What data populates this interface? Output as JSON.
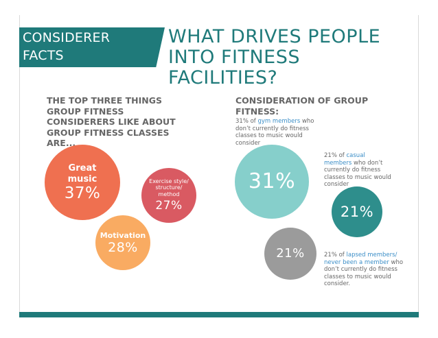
{
  "header": {
    "badge_line1": "CONSIDERER",
    "badge_line2": "FACTS",
    "title_line1": "WHAT DRIVES PEOPLE",
    "title_line2": "INTO FITNESS",
    "title_line3": "FACILITIES?"
  },
  "left": {
    "heading_lines": [
      "THE TOP THREE THINGS",
      "GROUP FITNESS",
      "CONSIDERERS LIKE ABOUT",
      "GROUP FITNESS CLASSES",
      "ARE..."
    ],
    "items": [
      {
        "label_lines": [
          "Great",
          "music"
        ],
        "percent": "37%",
        "color": "#ef7050"
      },
      {
        "label_lines": [
          "Exercise style/",
          "structure/",
          "method"
        ],
        "percent": "27%",
        "color": "#d95a62"
      },
      {
        "label_lines": [
          "Motivation"
        ],
        "percent": "28%",
        "color": "#f9ab62"
      }
    ]
  },
  "right": {
    "heading_lines": [
      "CONSIDERATION OF GROUP",
      "FITNESS:"
    ],
    "note1": {
      "pre": "31% of ",
      "highlight": "gym members",
      "post_lines": [
        " who",
        "don’t currently do fitness",
        "classes to music would",
        "consider"
      ]
    },
    "note2": {
      "pre": "21% of ",
      "highlight_lines": [
        "casual",
        "members"
      ],
      "post_lines": [
        " who don’t",
        "currently do fitness",
        "classes to music would",
        "consider"
      ]
    },
    "note3": {
      "pre": "21% of ",
      "highlight_lines": [
        "lapsed members/",
        "never been a member"
      ],
      "post_lines": [
        " who",
        "don’t currently do fitness",
        "classes to music would",
        "consider."
      ]
    },
    "circles": [
      {
        "percent": "31%",
        "color": "#86cfcb"
      },
      {
        "percent": "21%",
        "color": "#2e8e8c"
      },
      {
        "percent": "21%",
        "color": "#9b9b9b"
      }
    ]
  }
}
